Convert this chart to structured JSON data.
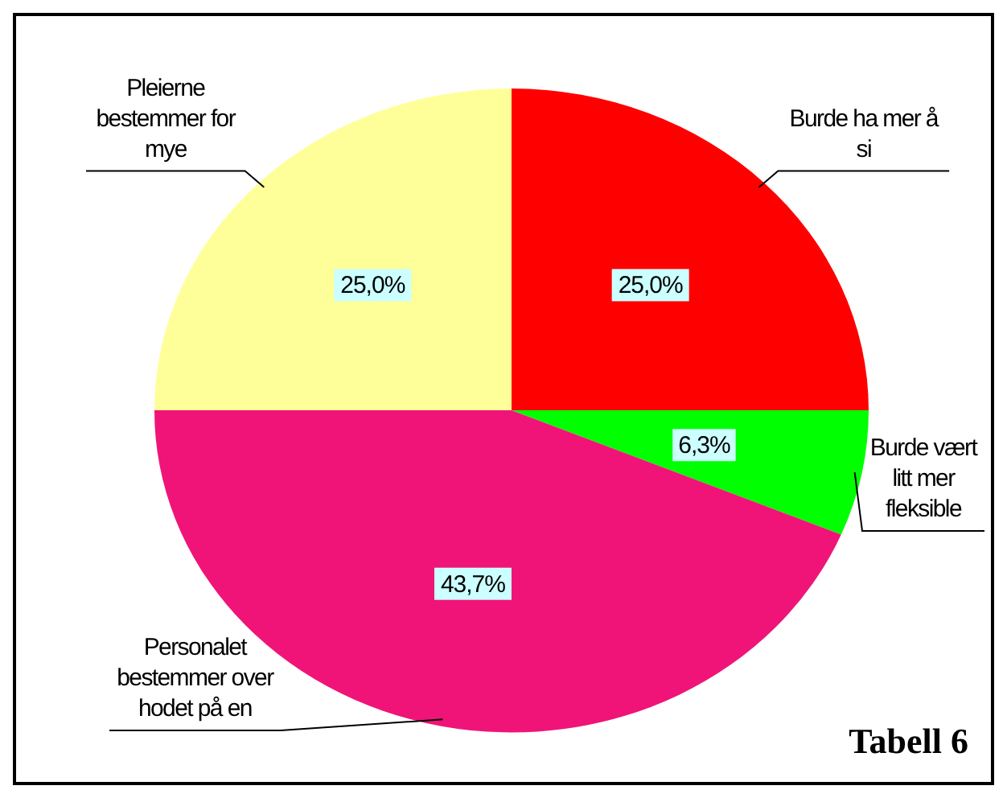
{
  "chart_data": {
    "type": "pie",
    "categories": [
      "Burde ha mer å si",
      "Burde vært litt mer fleksible",
      "Personalet bestemmer over hodet på en",
      "Pleierne bestemmer for mye"
    ],
    "values": [
      25.0,
      6.3,
      43.7,
      25.0
    ],
    "colors": [
      "#ff0000",
      "#00ff00",
      "#f01478",
      "#ffff99"
    ],
    "value_labels": [
      "25,0%",
      "6,3%",
      "43,7%",
      "25,0%"
    ],
    "annotations": [
      "Tabell 6"
    ]
  }
}
